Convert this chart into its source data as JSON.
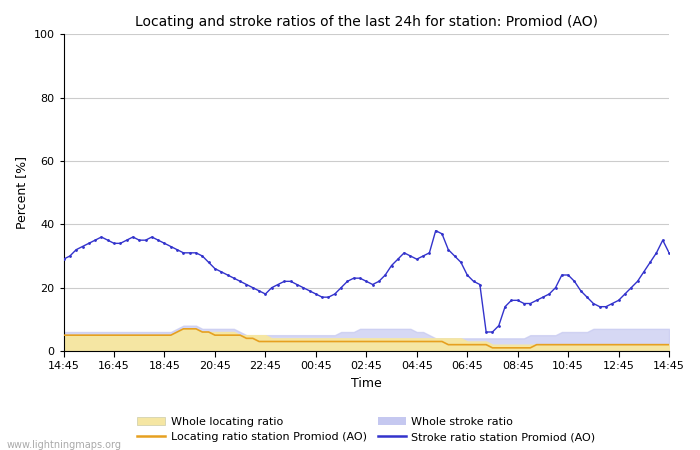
{
  "title": "Locating and stroke ratios of the last 24h for station: Promiod (AO)",
  "xlabel": "Time",
  "ylabel": "Percent [%]",
  "ylim": [
    0,
    100
  ],
  "yticks": [
    0,
    20,
    40,
    60,
    80,
    100
  ],
  "watermark": "www.lightningmaps.org",
  "x_labels": [
    "14:45",
    "16:45",
    "18:45",
    "20:45",
    "22:45",
    "00:45",
    "02:45",
    "04:45",
    "06:45",
    "08:45",
    "10:45",
    "12:45",
    "14:45"
  ],
  "legend": {
    "whole_locating_label": "Whole locating ratio",
    "locating_station_label": "Locating ratio station Promiod (AO)",
    "whole_stroke_label": "Whole stroke ratio",
    "stroke_station_label": "Stroke ratio station Promiod (AO)"
  },
  "colors": {
    "whole_locating_fill": "#f5e6a3",
    "whole_locating_line": "#f5c842",
    "whole_stroke_fill": "#c5c8f0",
    "whole_stroke_line": "#c5c8f0",
    "stroke_station_line": "#3333cc",
    "locating_station_line": "#e6a020"
  },
  "whole_locating": [
    5,
    5,
    5,
    5,
    5,
    5,
    5,
    5,
    5,
    5,
    5,
    5,
    5,
    5,
    5,
    5,
    5,
    5,
    6,
    7,
    7,
    7,
    6,
    6,
    6,
    6,
    6,
    6,
    5,
    5,
    5,
    5,
    5,
    4,
    4,
    4,
    4,
    4,
    4,
    4,
    4,
    4,
    4,
    4,
    4,
    4,
    4,
    4,
    4,
    4,
    4,
    4,
    4,
    4,
    4,
    4,
    4,
    4,
    4,
    4,
    4,
    4,
    4,
    4,
    3,
    3,
    3,
    3,
    2,
    2,
    2,
    2,
    2,
    2,
    2,
    2,
    2,
    2,
    2,
    2,
    2,
    2,
    2,
    2,
    2,
    2,
    2,
    2,
    2,
    2,
    2,
    2,
    2,
    2,
    2,
    2,
    2
  ],
  "whole_stroke": [
    6,
    6,
    6,
    6,
    6,
    6,
    6,
    6,
    6,
    6,
    6,
    6,
    6,
    6,
    6,
    6,
    6,
    6,
    7,
    8,
    8,
    8,
    7,
    7,
    7,
    7,
    7,
    7,
    6,
    5,
    5,
    5,
    5,
    5,
    5,
    5,
    5,
    5,
    5,
    5,
    5,
    5,
    5,
    5,
    6,
    6,
    6,
    7,
    7,
    7,
    7,
    7,
    7,
    7,
    7,
    7,
    6,
    6,
    5,
    4,
    4,
    4,
    4,
    4,
    4,
    4,
    4,
    4,
    4,
    4,
    4,
    4,
    4,
    4,
    5,
    5,
    5,
    5,
    5,
    6,
    6,
    6,
    6,
    6,
    7,
    7,
    7,
    7,
    7,
    7,
    7,
    7,
    7,
    7,
    7,
    7,
    7
  ],
  "locating_station": [
    5,
    5,
    5,
    5,
    5,
    5,
    5,
    5,
    5,
    5,
    5,
    5,
    5,
    5,
    5,
    5,
    5,
    5,
    6,
    7,
    7,
    7,
    6,
    6,
    5,
    5,
    5,
    5,
    5,
    4,
    4,
    3,
    3,
    3,
    3,
    3,
    3,
    3,
    3,
    3,
    3,
    3,
    3,
    3,
    3,
    3,
    3,
    3,
    3,
    3,
    3,
    3,
    3,
    3,
    3,
    3,
    3,
    3,
    3,
    3,
    3,
    2,
    2,
    2,
    2,
    2,
    2,
    2,
    1,
    1,
    1,
    1,
    1,
    1,
    1,
    2,
    2,
    2,
    2,
    2,
    2,
    2,
    2,
    2,
    2,
    2,
    2,
    2,
    2,
    2,
    2,
    2,
    2,
    2,
    2,
    2,
    2
  ],
  "stroke_station": [
    29,
    30,
    32,
    33,
    34,
    35,
    36,
    35,
    34,
    34,
    35,
    36,
    35,
    35,
    36,
    35,
    34,
    33,
    32,
    31,
    31,
    31,
    30,
    28,
    26,
    25,
    24,
    23,
    22,
    21,
    20,
    19,
    18,
    20,
    21,
    22,
    22,
    21,
    20,
    19,
    18,
    17,
    17,
    18,
    20,
    22,
    23,
    23,
    22,
    21,
    22,
    24,
    27,
    29,
    31,
    30,
    29,
    30,
    31,
    38,
    37,
    32,
    30,
    28,
    24,
    22,
    21,
    6,
    6,
    8,
    14,
    16,
    16,
    15,
    15,
    16,
    17,
    18,
    20,
    24,
    24,
    22,
    19,
    17,
    15,
    14,
    14,
    15,
    16,
    18,
    20,
    22,
    25,
    28,
    31,
    35,
    31
  ]
}
